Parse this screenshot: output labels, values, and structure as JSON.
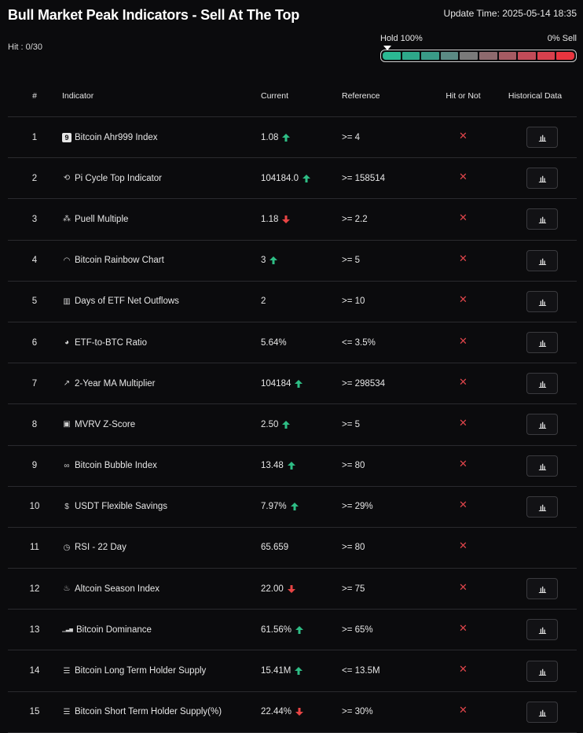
{
  "header": {
    "title": "Bull Market Peak Indicators - Sell At The Top",
    "update_time": "Update Time: 2025-05-14 18:35",
    "hit_count": "Hit : 0/30"
  },
  "meter": {
    "left_label": "Hold 100%",
    "right_label": "0% Sell",
    "segment_colors": [
      "#2bb893",
      "#2ea88a",
      "#3a9a87",
      "#5b8a84",
      "#7a7a7a",
      "#8e6a6e",
      "#a65b63",
      "#c24b58",
      "#d8404d",
      "#e8353f"
    ]
  },
  "colors": {
    "up": "#2ebd85",
    "down": "#e84444",
    "cross": "#e0454b"
  },
  "table": {
    "headers": {
      "num": "#",
      "indicator": "Indicator",
      "current": "Current",
      "reference": "Reference",
      "hit": "Hit or Not",
      "history": "Historical Data"
    },
    "rows": [
      {
        "num": "1",
        "icon": "ahr999-icon",
        "glyph": "9",
        "name": "Bitcoin Ahr999 Index",
        "current": "1.08",
        "trend": "up",
        "reference": ">= 4",
        "hit": "✕",
        "has_history": true
      },
      {
        "num": "2",
        "icon": "pi-cycle-icon",
        "glyph": "⟲",
        "name": "Pi Cycle Top Indicator",
        "current": "104184.0",
        "trend": "up",
        "reference": ">= 158514",
        "hit": "✕",
        "has_history": true
      },
      {
        "num": "3",
        "icon": "puell-icon",
        "glyph": "⁂",
        "name": "Puell Multiple",
        "current": "1.18",
        "trend": "down",
        "reference": ">= 2.2",
        "hit": "✕",
        "has_history": true
      },
      {
        "num": "4",
        "icon": "rainbow-icon",
        "glyph": "◠",
        "name": "Bitcoin Rainbow Chart",
        "current": "3",
        "trend": "up",
        "reference": ">= 5",
        "hit": "✕",
        "has_history": true
      },
      {
        "num": "5",
        "icon": "bar-chart-icon",
        "glyph": "▥",
        "name": "Days of ETF Net Outflows",
        "current": "2",
        "trend": "none",
        "reference": ">= 10",
        "hit": "✕",
        "has_history": true
      },
      {
        "num": "6",
        "icon": "pie-chart-icon",
        "glyph": "◕",
        "name": "ETF-to-BTC Ratio",
        "current": "5.64%",
        "trend": "none",
        "reference": "<= 3.5%",
        "hit": "✕",
        "has_history": true
      },
      {
        "num": "7",
        "icon": "trend-line-icon",
        "glyph": "↗",
        "name": "2-Year MA Multiplier",
        "current": "104184",
        "trend": "up",
        "reference": ">= 298534",
        "hit": "✕",
        "has_history": true
      },
      {
        "num": "8",
        "icon": "clipboard-icon",
        "glyph": "▣",
        "name": "MVRV Z-Score",
        "current": "2.50",
        "trend": "up",
        "reference": ">= 5",
        "hit": "✕",
        "has_history": true
      },
      {
        "num": "9",
        "icon": "bubbles-icon",
        "glyph": "∞",
        "name": "Bitcoin Bubble Index",
        "current": "13.48",
        "trend": "up",
        "reference": ">= 80",
        "hit": "✕",
        "has_history": true
      },
      {
        "num": "10",
        "icon": "dollar-icon",
        "glyph": "$",
        "name": "USDT Flexible Savings",
        "current": "7.97%",
        "trend": "up",
        "reference": ">= 29%",
        "hit": "✕",
        "has_history": true
      },
      {
        "num": "11",
        "icon": "clock-icon",
        "glyph": "◷",
        "name": "RSI - 22 Day",
        "current": "65.659",
        "trend": "none",
        "reference": ">= 80",
        "hit": "✕",
        "has_history": false
      },
      {
        "num": "12",
        "icon": "flame-icon",
        "glyph": "♨",
        "name": "Altcoin Season Index",
        "current": "22.00",
        "trend": "down",
        "reference": ">= 75",
        "hit": "✕",
        "has_history": true
      },
      {
        "num": "13",
        "icon": "signal-bars-icon",
        "glyph": "▁▃▅",
        "name": "Bitcoin Dominance",
        "current": "61.56%",
        "trend": "up",
        "reference": ">= 65%",
        "hit": "✕",
        "has_history": true
      },
      {
        "num": "14",
        "icon": "database-icon",
        "glyph": "☰",
        "name": "Bitcoin Long Term Holder Supply",
        "current": "15.41M",
        "trend": "up",
        "reference": "<= 13.5M",
        "hit": "✕",
        "has_history": true
      },
      {
        "num": "15",
        "icon": "database-icon",
        "glyph": "☰",
        "name": "Bitcoin Short Term Holder Supply(%)",
        "current": "22.44%",
        "trend": "down",
        "reference": ">= 30%",
        "hit": "✕",
        "has_history": true
      }
    ]
  }
}
